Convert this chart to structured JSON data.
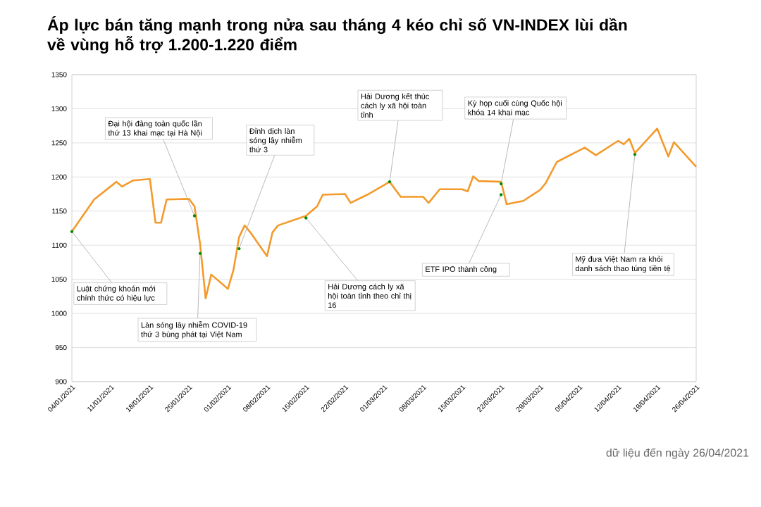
{
  "chart_data": {
    "type": "line",
    "title": "Áp lực bán tăng mạnh trong nửa sau tháng 4 kéo chỉ số VN-INDEX lùi dần về vùng hỗ trợ 1.200-1.220 điểm",
    "x": [
      "2021-01-04",
      "2021-01-08",
      "2021-01-12",
      "2021-01-13",
      "2021-01-15",
      "2021-01-18",
      "2021-01-19",
      "2021-01-20",
      "2021-01-21",
      "2021-01-25",
      "2021-01-26",
      "2021-01-27",
      "2021-01-28",
      "2021-01-29",
      "2021-02-01",
      "2021-02-02",
      "2021-02-03",
      "2021-02-04",
      "2021-02-05",
      "2021-02-08",
      "2021-02-09",
      "2021-02-10",
      "2021-02-15",
      "2021-02-17",
      "2021-02-18",
      "2021-02-22",
      "2021-02-23",
      "2021-02-26",
      "2021-03-01",
      "2021-03-02",
      "2021-03-04",
      "2021-03-08",
      "2021-03-09",
      "2021-03-11",
      "2021-03-15",
      "2021-03-16",
      "2021-03-17",
      "2021-03-18",
      "2021-03-22",
      "2021-03-23",
      "2021-03-26",
      "2021-03-29",
      "2021-03-30",
      "2021-04-01",
      "2021-04-06",
      "2021-04-08",
      "2021-04-12",
      "2021-04-13",
      "2021-04-14",
      "2021-04-15",
      "2021-04-19",
      "2021-04-21",
      "2021-04-22",
      "2021-04-26"
    ],
    "series": [
      {
        "color": "#f39a2b",
        "values": [
          1120,
          1167,
          1193,
          1186,
          1195,
          1197,
          1133,
          1133,
          1167,
          1168,
          1157,
          1102,
          1022,
          1057,
          1036,
          1064,
          1112,
          1129,
          1119,
          1084,
          1119,
          1129,
          1143,
          1157,
          1174,
          1175,
          1162,
          1174,
          1188,
          1193,
          1171,
          1171,
          1162,
          1182,
          1182,
          1179,
          1201,
          1194,
          1193,
          1160,
          1165,
          1181,
          1191,
          1222,
          1243,
          1232,
          1253,
          1248,
          1256,
          1235,
          1271,
          1230,
          1251,
          1215
        ]
      }
    ],
    "xlim": [
      "2021-01-04",
      "2021-04-26"
    ],
    "xticks": [
      {
        "value": "2021-01-04",
        "label": "04/01/2021"
      },
      {
        "value": "2021-01-11",
        "label": "11/01/2021"
      },
      {
        "value": "2021-01-18",
        "label": "18/01/2021"
      },
      {
        "value": "2021-01-25",
        "label": "25/01/2021"
      },
      {
        "value": "2021-02-01",
        "label": "01/02/2021"
      },
      {
        "value": "2021-02-08",
        "label": "08/02/2021"
      },
      {
        "value": "2021-02-15",
        "label": "15/02/2021"
      },
      {
        "value": "2021-02-22",
        "label": "22/02/2021"
      },
      {
        "value": "2021-03-01",
        "label": "01/03/2021"
      },
      {
        "value": "2021-03-08",
        "label": "08/03/2021"
      },
      {
        "value": "2021-03-15",
        "label": "15/03/2021"
      },
      {
        "value": "2021-03-22",
        "label": "22/03/2021"
      },
      {
        "value": "2021-03-29",
        "label": "29/03/2021"
      },
      {
        "value": "2021-04-05",
        "label": "05/04/2021"
      },
      {
        "value": "2021-04-12",
        "label": "12/04/2021"
      },
      {
        "value": "2021-04-19",
        "label": "19/04/2021"
      },
      {
        "value": "2021-04-26",
        "label": "26/04/2021"
      }
    ],
    "ylim": [
      900,
      1350
    ],
    "yticks": [
      900,
      950,
      1000,
      1050,
      1100,
      1150,
      1200,
      1250,
      1300,
      1350
    ],
    "grid": "y",
    "annotations": [
      {
        "text": "Luật chứng khoán mới chính thức có hiệu lực",
        "x": "2021-01-04",
        "y": 1120
      },
      {
        "text": "Đại hội đảng toàn quốc lần thứ 13 khai mạc tại Hà Nội",
        "x": "2021-01-26",
        "y": 1143
      },
      {
        "text": "Làn sóng lây nhiễm COVID-19 thứ 3 bùng phát tại Việt Nam",
        "x": "2021-01-27",
        "y": 1088
      },
      {
        "text": "Đỉnh dịch làn sóng lây nhiễm thứ 3",
        "x": "2021-02-03",
        "y": 1095
      },
      {
        "text": "Hải Dương cách ly xã hội toàn tỉnh theo chỉ thị 16",
        "x": "2021-02-15",
        "y": 1140
      },
      {
        "text": "Hải Dương kết thúc cách ly xã hội toàn tỉnh",
        "x": "2021-03-02",
        "y": 1193
      },
      {
        "text": "Kỳ họp cuối cùng Quốc hội khóa 14 khai mạc",
        "x": "2021-03-22",
        "y": 1190
      },
      {
        "text": "ETF IPO thành công",
        "x": "2021-03-22",
        "y": 1174
      },
      {
        "text": "Mỹ đưa Việt Nam ra khỏi danh sách thao túng tiền tệ",
        "x": "2021-04-15",
        "y": 1233
      },
      "dữ liệu đến ngày 26/04/2021"
    ]
  }
}
